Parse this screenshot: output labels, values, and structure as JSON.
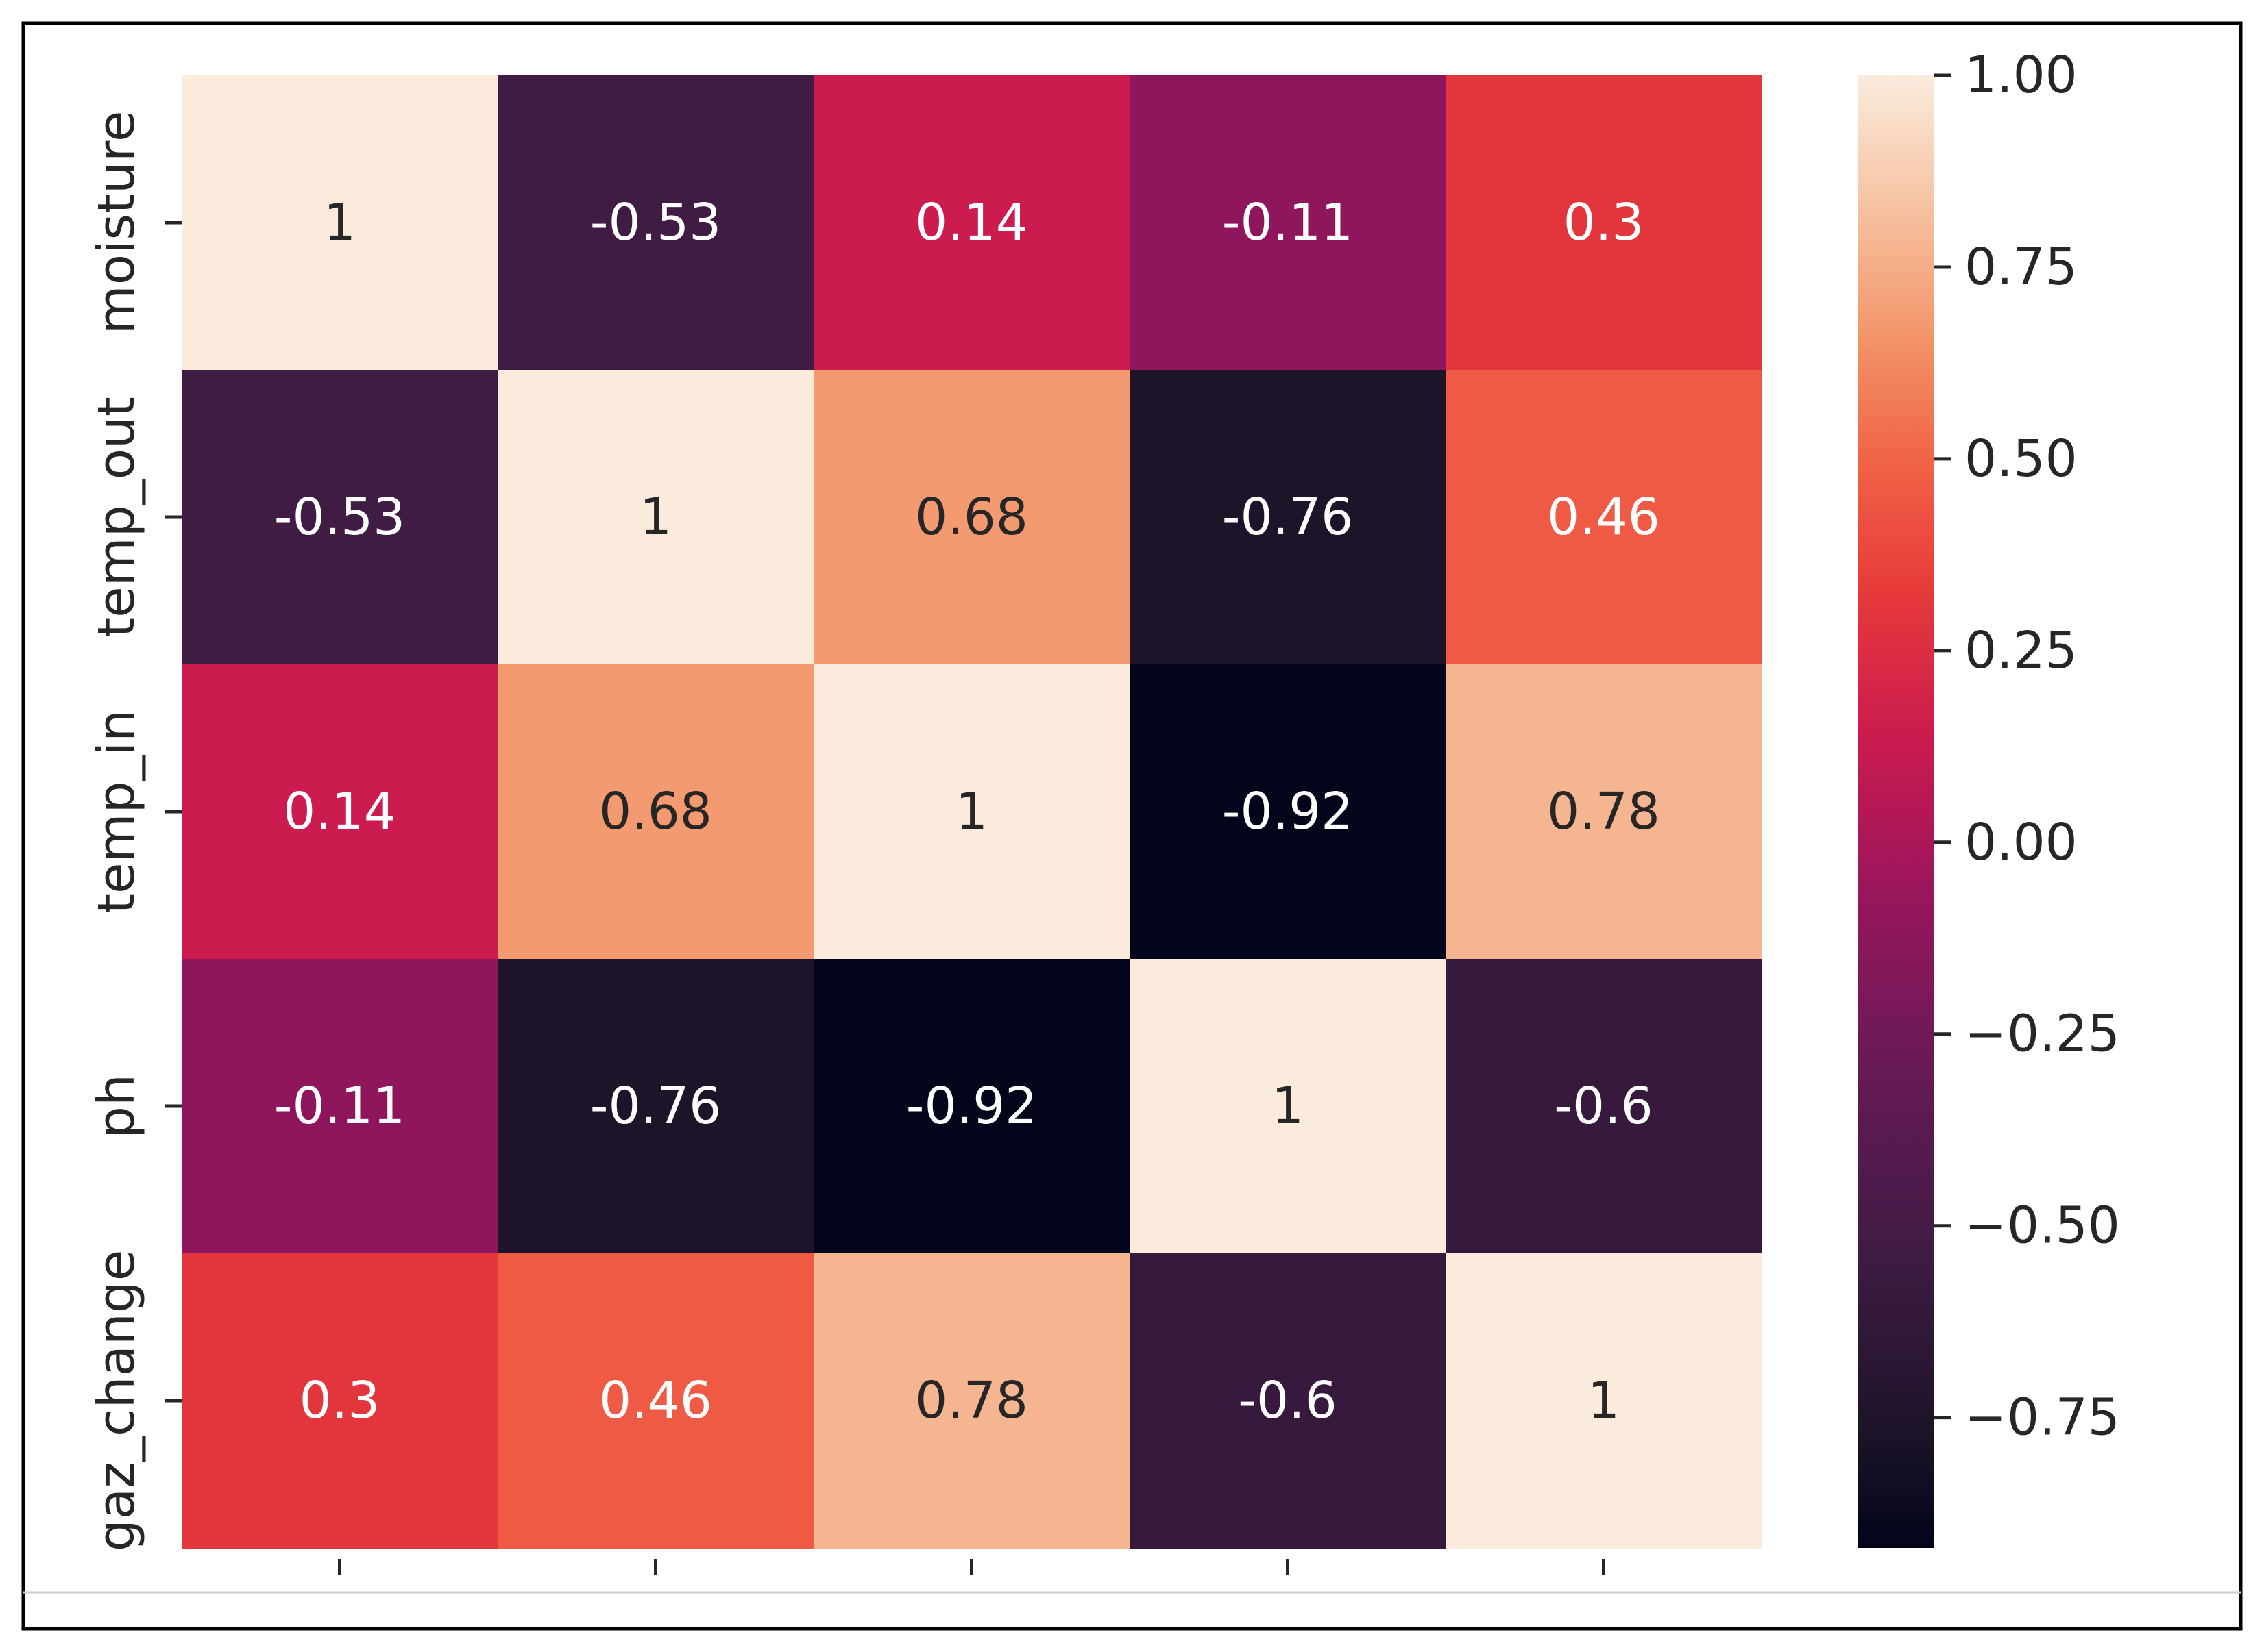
{
  "chart_data": {
    "type": "heatmap",
    "title": "",
    "xlabel": "",
    "ylabel": "",
    "row_labels": [
      "moisture",
      "temp_out",
      "temp_in",
      "ph",
      "gaz_change"
    ],
    "col_labels": [
      "",
      "",
      "",
      "",
      ""
    ],
    "values": [
      [
        1,
        -0.53,
        0.14,
        -0.11,
        0.3
      ],
      [
        -0.53,
        1,
        0.68,
        -0.76,
        0.46
      ],
      [
        0.14,
        0.68,
        1,
        -0.92,
        0.78
      ],
      [
        -0.11,
        -0.76,
        -0.92,
        1,
        -0.6
      ],
      [
        0.3,
        0.46,
        0.78,
        -0.6,
        1
      ]
    ],
    "annotations": [
      [
        "1",
        "-0.53",
        "0.14",
        "-0.11",
        "0.3"
      ],
      [
        "-0.53",
        "1",
        "0.68",
        "-0.76",
        "0.46"
      ],
      [
        "0.14",
        "0.68",
        "1",
        "-0.92",
        "0.78"
      ],
      [
        "-0.11",
        "-0.76",
        "-0.92",
        "1",
        "-0.6"
      ],
      [
        "0.3",
        "0.46",
        "0.78",
        "-0.6",
        "1"
      ]
    ],
    "colormap": "rocket",
    "colorbar": {
      "vmin": -0.92,
      "vmax": 1,
      "ticks": [
        1.0,
        0.75,
        0.5,
        0.25,
        0.0,
        -0.25,
        -0.5,
        -0.75
      ],
      "tick_labels": [
        "1.00",
        "0.75",
        "0.50",
        "0.25",
        "0.00",
        "−0.25",
        "−0.50",
        "−0.75"
      ]
    }
  }
}
